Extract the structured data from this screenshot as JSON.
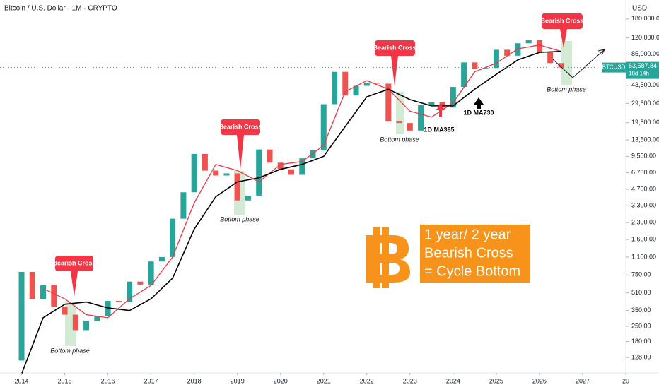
{
  "header": "Bitcoin / U.S. Dollar · 1M · CRYPTO",
  "currency": "USD",
  "chart_data": {
    "type": "candlestick",
    "log_scale": true,
    "xlim": [
      2013.5,
      2028
    ],
    "xticks": [
      2014,
      2015,
      2016,
      2017,
      2018,
      2019,
      2020,
      2021,
      2022,
      2023,
      2024,
      2025,
      2026,
      2027,
      {
        "value": 2028,
        "label": "20"
      }
    ],
    "ylim": [
      92,
      270000
    ],
    "yticks": [
      {
        "value": 128,
        "label": "128.00"
      },
      {
        "value": 180,
        "label": "180.00"
      },
      {
        "value": 250,
        "label": "250.00"
      },
      {
        "value": 350,
        "label": "350.00"
      },
      {
        "value": 510,
        "label": "510.00"
      },
      {
        "value": 750,
        "label": "750.00"
      },
      {
        "value": 1100,
        "label": "1,100.00"
      },
      {
        "value": 1600,
        "label": "1,600.00"
      },
      {
        "value": 2300,
        "label": "2,300.00"
      },
      {
        "value": 3300,
        "label": "3,300.00"
      },
      {
        "value": 4700,
        "label": "4,700.00"
      },
      {
        "value": 6700,
        "label": "6,700.00"
      },
      {
        "value": 9500,
        "label": "9,500.00"
      },
      {
        "value": 13500,
        "label": "13,500.00"
      },
      {
        "value": 19500,
        "label": "19,500.00"
      },
      {
        "value": 29500,
        "label": "29,500.00"
      },
      {
        "value": 43500,
        "label": "43,500.00"
      },
      {
        "value": 85000,
        "label": "85,000.00"
      },
      {
        "value": 120000,
        "label": "120,000.00"
      },
      {
        "value": 180000,
        "label": "180,000.00"
      }
    ],
    "x": [
      2013.9,
      2014.0,
      2014.25,
      2014.5,
      2014.75,
      2015.0,
      2015.25,
      2015.5,
      2015.75,
      2016.0,
      2016.25,
      2016.5,
      2016.75,
      2017.0,
      2017.25,
      2017.5,
      2017.75,
      2018.0,
      2018.25,
      2018.5,
      2018.75,
      2019.0,
      2019.25,
      2019.5,
      2019.75,
      2020.0,
      2020.25,
      2020.5,
      2020.75,
      2021.0,
      2021.25,
      2021.5,
      2021.75,
      2022.0,
      2022.25,
      2022.5,
      2022.75,
      2023.0,
      2023.25,
      2023.5,
      2023.75,
      2024.0,
      2024.25,
      2024.5,
      2024.75,
      2025.0,
      2025.25,
      2025.5,
      2025.75,
      2026.0,
      2026.25,
      2026.5
    ],
    "series": [
      {
        "name": "BTCUSD",
        "color": "#26a69a",
        "down_color": "#ef5350",
        "values": [
          120,
          800,
          450,
          600,
          380,
          320,
          230,
          280,
          310,
          430,
          420,
          650,
          610,
          1000,
          1100,
          2500,
          4400,
          10000,
          7000,
          6300,
          6600,
          3700,
          4100,
          11000,
          8300,
          7200,
          6400,
          9100,
          10800,
          29000,
          58000,
          35000,
          43000,
          46000,
          45000,
          20000,
          19400,
          16500,
          28400,
          30400,
          27000,
          42000,
          71000,
          62000,
          63000,
          93000,
          82000,
          107000,
          114000,
          88000,
          70000,
          63587.84
        ]
      },
      {
        "name": "1D MA365",
        "color": "#f23645",
        "x": [
          2014.5,
          2015.0,
          2015.5,
          2016.0,
          2016.5,
          2017.0,
          2017.5,
          2018.0,
          2018.5,
          2019.0,
          2019.5,
          2020.0,
          2020.5,
          2021.0,
          2021.5,
          2022.0,
          2022.5,
          2023.0,
          2023.5,
          2024.0,
          2024.5,
          2025.0,
          2025.5,
          2026.0,
          2026.5
        ],
        "values": [
          560,
          450,
          320,
          300,
          450,
          600,
          1100,
          3500,
          8000,
          7000,
          5500,
          8000,
          8500,
          12000,
          38000,
          48000,
          40000,
          25000,
          22000,
          30000,
          58000,
          70000,
          95000,
          103000,
          90000
        ]
      },
      {
        "name": "1D MA730",
        "color": "#000000",
        "x": [
          2014.0,
          2014.5,
          2015.0,
          2015.5,
          2016.0,
          2016.5,
          2017.0,
          2017.5,
          2018.0,
          2018.5,
          2019.0,
          2019.5,
          2020.0,
          2020.5,
          2021.0,
          2021.5,
          2022.0,
          2022.5,
          2023.0,
          2023.5,
          2024.0,
          2024.5,
          2025.0,
          2025.5,
          2026.0,
          2026.5
        ],
        "values": [
          90,
          300,
          400,
          420,
          370,
          350,
          450,
          700,
          2000,
          4000,
          5500,
          6000,
          7200,
          8000,
          9500,
          18000,
          34000,
          40000,
          32000,
          28000,
          28000,
          40000,
          55000,
          75000,
          88000,
          90000
        ]
      }
    ],
    "price_label": {
      "value": 63587.84,
      "label": "63,587.84"
    },
    "symbol": "BTCUSD",
    "countdown": "18d 14h",
    "callouts": [
      "Bearish Cross",
      "Bearish Cross",
      "Bearish Cross",
      "Bearish Cross"
    ],
    "bottom_labels": [
      "Bottom phase",
      "Bottom phase",
      "Bottom phase",
      "Bottom phase"
    ],
    "box_lines": [
      "1 year/ 2 year",
      "Bearish Cross",
      "= Cycle Bottom"
    ]
  }
}
